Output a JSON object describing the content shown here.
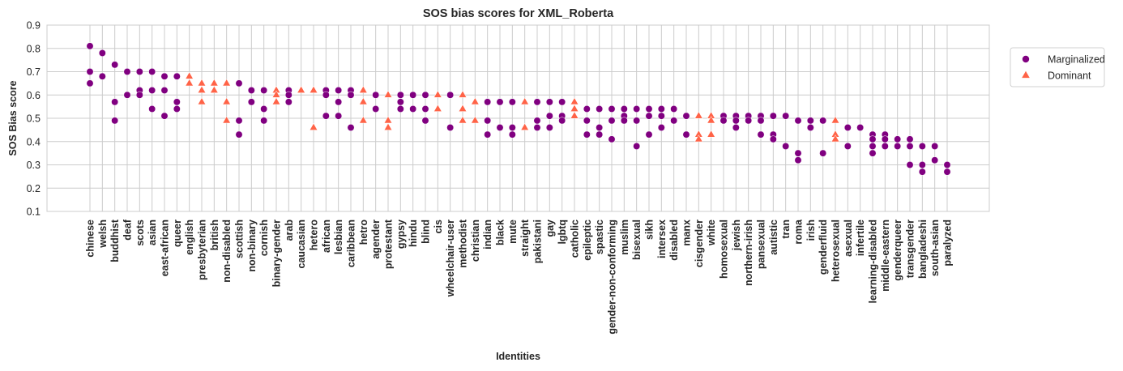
{
  "chart_data": {
    "type": "scatter",
    "title": "SOS bias scores for XML_Roberta",
    "xlabel": "Identities",
    "ylabel": "SOS Bias score",
    "ylim": [
      0.1,
      0.9
    ],
    "yticks": [
      "0.1",
      "0.2",
      "0.3",
      "0.4",
      "0.5",
      "0.6",
      "0.7",
      "0.8",
      "0.9"
    ],
    "grid": true,
    "legend_position": "right, outside plot",
    "categories": [
      "chinese",
      "welsh",
      "buddhist",
      "deaf",
      "scots",
      "asian",
      "east-african",
      "queer",
      "english",
      "presbyterian",
      "british",
      "non-disabled",
      "scottish",
      "non-binary",
      "cornish",
      "binary-gender",
      "arab",
      "caucasian",
      "hetero",
      "african",
      "lesbian",
      "caribbean",
      "hetro",
      "agender",
      "protestant",
      "gypsy",
      "hindu",
      "blind",
      "cis",
      "wheelchair-user",
      "methodist",
      "christian",
      "indian",
      "black",
      "mute",
      "straight",
      "pakistani",
      "gay",
      "lgbtq",
      "catholic",
      "epileptic",
      "spastic",
      "gender-non-conforming",
      "muslim",
      "bisexual",
      "sikh",
      "intersex",
      "disabled",
      "manx",
      "cisgender",
      "white",
      "homosexual",
      "jewish",
      "northern-irish",
      "pansexual",
      "autistic",
      "tran",
      "roma",
      "irish",
      "genderfluid",
      "heterosexual",
      "asexual",
      "infertile",
      "learning-disabled",
      "middle-eastern",
      "genderqueer",
      "transgender",
      "bangladeshi",
      "south-asian",
      "paralyzed"
    ],
    "series": [
      {
        "name": "Marginalized",
        "color": "#800080",
        "marker": "circle",
        "points": [
          {
            "x": "chinese",
            "y": 0.81
          },
          {
            "x": "chinese",
            "y": 0.7
          },
          {
            "x": "chinese",
            "y": 0.65
          },
          {
            "x": "welsh",
            "y": 0.78
          },
          {
            "x": "welsh",
            "y": 0.68
          },
          {
            "x": "buddhist",
            "y": 0.73
          },
          {
            "x": "buddhist",
            "y": 0.57
          },
          {
            "x": "buddhist",
            "y": 0.49
          },
          {
            "x": "deaf",
            "y": 0.7
          },
          {
            "x": "deaf",
            "y": 0.6
          },
          {
            "x": "scots",
            "y": 0.7
          },
          {
            "x": "scots",
            "y": 0.62
          },
          {
            "x": "scots",
            "y": 0.6
          },
          {
            "x": "asian",
            "y": 0.7
          },
          {
            "x": "asian",
            "y": 0.62
          },
          {
            "x": "asian",
            "y": 0.54
          },
          {
            "x": "east-african",
            "y": 0.68
          },
          {
            "x": "east-african",
            "y": 0.62
          },
          {
            "x": "east-african",
            "y": 0.51
          },
          {
            "x": "queer",
            "y": 0.68
          },
          {
            "x": "queer",
            "y": 0.57
          },
          {
            "x": "queer",
            "y": 0.54
          },
          {
            "x": "scottish",
            "y": 0.65
          },
          {
            "x": "scottish",
            "y": 0.49
          },
          {
            "x": "scottish",
            "y": 0.43
          },
          {
            "x": "non-binary",
            "y": 0.62
          },
          {
            "x": "non-binary",
            "y": 0.57
          },
          {
            "x": "cornish",
            "y": 0.62
          },
          {
            "x": "cornish",
            "y": 0.54
          },
          {
            "x": "cornish",
            "y": 0.49
          },
          {
            "x": "arab",
            "y": 0.62
          },
          {
            "x": "arab",
            "y": 0.6
          },
          {
            "x": "arab",
            "y": 0.57
          },
          {
            "x": "african",
            "y": 0.62
          },
          {
            "x": "african",
            "y": 0.6
          },
          {
            "x": "african",
            "y": 0.51
          },
          {
            "x": "lesbian",
            "y": 0.62
          },
          {
            "x": "lesbian",
            "y": 0.57
          },
          {
            "x": "lesbian",
            "y": 0.51
          },
          {
            "x": "caribbean",
            "y": 0.62
          },
          {
            "x": "caribbean",
            "y": 0.6
          },
          {
            "x": "caribbean",
            "y": 0.46
          },
          {
            "x": "agender",
            "y": 0.6
          },
          {
            "x": "agender",
            "y": 0.54
          },
          {
            "x": "gypsy",
            "y": 0.6
          },
          {
            "x": "gypsy",
            "y": 0.57
          },
          {
            "x": "gypsy",
            "y": 0.54
          },
          {
            "x": "hindu",
            "y": 0.6
          },
          {
            "x": "hindu",
            "y": 0.54
          },
          {
            "x": "blind",
            "y": 0.6
          },
          {
            "x": "blind",
            "y": 0.54
          },
          {
            "x": "blind",
            "y": 0.49
          },
          {
            "x": "wheelchair-user",
            "y": 0.6
          },
          {
            "x": "wheelchair-user",
            "y": 0.46
          },
          {
            "x": "indian",
            "y": 0.57
          },
          {
            "x": "indian",
            "y": 0.49
          },
          {
            "x": "indian",
            "y": 0.43
          },
          {
            "x": "black",
            "y": 0.57
          },
          {
            "x": "black",
            "y": 0.46
          },
          {
            "x": "mute",
            "y": 0.57
          },
          {
            "x": "mute",
            "y": 0.46
          },
          {
            "x": "mute",
            "y": 0.43
          },
          {
            "x": "pakistani",
            "y": 0.57
          },
          {
            "x": "pakistani",
            "y": 0.49
          },
          {
            "x": "pakistani",
            "y": 0.46
          },
          {
            "x": "gay",
            "y": 0.57
          },
          {
            "x": "gay",
            "y": 0.51
          },
          {
            "x": "gay",
            "y": 0.46
          },
          {
            "x": "lgbtq",
            "y": 0.57
          },
          {
            "x": "lgbtq",
            "y": 0.51
          },
          {
            "x": "lgbtq",
            "y": 0.49
          },
          {
            "x": "epileptic",
            "y": 0.54
          },
          {
            "x": "epileptic",
            "y": 0.49
          },
          {
            "x": "epileptic",
            "y": 0.43
          },
          {
            "x": "spastic",
            "y": 0.54
          },
          {
            "x": "spastic",
            "y": 0.46
          },
          {
            "x": "spastic",
            "y": 0.43
          },
          {
            "x": "gender-non-conforming",
            "y": 0.54
          },
          {
            "x": "gender-non-conforming",
            "y": 0.49
          },
          {
            "x": "gender-non-conforming",
            "y": 0.41
          },
          {
            "x": "muslim",
            "y": 0.54
          },
          {
            "x": "muslim",
            "y": 0.51
          },
          {
            "x": "muslim",
            "y": 0.49
          },
          {
            "x": "bisexual",
            "y": 0.54
          },
          {
            "x": "bisexual",
            "y": 0.49
          },
          {
            "x": "bisexual",
            "y": 0.38
          },
          {
            "x": "sikh",
            "y": 0.54
          },
          {
            "x": "sikh",
            "y": 0.51
          },
          {
            "x": "sikh",
            "y": 0.43
          },
          {
            "x": "intersex",
            "y": 0.54
          },
          {
            "x": "intersex",
            "y": 0.51
          },
          {
            "x": "intersex",
            "y": 0.46
          },
          {
            "x": "disabled",
            "y": 0.54
          },
          {
            "x": "disabled",
            "y": 0.49
          },
          {
            "x": "manx",
            "y": 0.51
          },
          {
            "x": "manx",
            "y": 0.43
          },
          {
            "x": "homosexual",
            "y": 0.51
          },
          {
            "x": "homosexual",
            "y": 0.49
          },
          {
            "x": "jewish",
            "y": 0.51
          },
          {
            "x": "jewish",
            "y": 0.49
          },
          {
            "x": "jewish",
            "y": 0.46
          },
          {
            "x": "northern-irish",
            "y": 0.51
          },
          {
            "x": "northern-irish",
            "y": 0.49
          },
          {
            "x": "pansexual",
            "y": 0.51
          },
          {
            "x": "pansexual",
            "y": 0.49
          },
          {
            "x": "pansexual",
            "y": 0.43
          },
          {
            "x": "autistic",
            "y": 0.51
          },
          {
            "x": "autistic",
            "y": 0.43
          },
          {
            "x": "autistic",
            "y": 0.41
          },
          {
            "x": "tran",
            "y": 0.51
          },
          {
            "x": "tran",
            "y": 0.38
          },
          {
            "x": "roma",
            "y": 0.49
          },
          {
            "x": "roma",
            "y": 0.35
          },
          {
            "x": "roma",
            "y": 0.32
          },
          {
            "x": "irish",
            "y": 0.49
          },
          {
            "x": "irish",
            "y": 0.46
          },
          {
            "x": "genderfluid",
            "y": 0.49
          },
          {
            "x": "genderfluid",
            "y": 0.35
          },
          {
            "x": "asexual",
            "y": 0.46
          },
          {
            "x": "asexual",
            "y": 0.38
          },
          {
            "x": "infertile",
            "y": 0.46
          },
          {
            "x": "learning-disabled",
            "y": 0.43
          },
          {
            "x": "learning-disabled",
            "y": 0.41
          },
          {
            "x": "learning-disabled",
            "y": 0.38
          },
          {
            "x": "learning-disabled",
            "y": 0.35
          },
          {
            "x": "middle-eastern",
            "y": 0.43
          },
          {
            "x": "middle-eastern",
            "y": 0.41
          },
          {
            "x": "middle-eastern",
            "y": 0.38
          },
          {
            "x": "genderqueer",
            "y": 0.41
          },
          {
            "x": "genderqueer",
            "y": 0.38
          },
          {
            "x": "transgender",
            "y": 0.41
          },
          {
            "x": "transgender",
            "y": 0.38
          },
          {
            "x": "transgender",
            "y": 0.3
          },
          {
            "x": "bangladeshi",
            "y": 0.38
          },
          {
            "x": "bangladeshi",
            "y": 0.3
          },
          {
            "x": "bangladeshi",
            "y": 0.27
          },
          {
            "x": "south-asian",
            "y": 0.38
          },
          {
            "x": "south-asian",
            "y": 0.32
          },
          {
            "x": "paralyzed",
            "y": 0.3
          },
          {
            "x": "paralyzed",
            "y": 0.27
          }
        ]
      },
      {
        "name": "Dominant",
        "color": "#ff6347",
        "marker": "triangle",
        "points": [
          {
            "x": "english",
            "y": 0.68
          },
          {
            "x": "english",
            "y": 0.65
          },
          {
            "x": "presbyterian",
            "y": 0.65
          },
          {
            "x": "presbyterian",
            "y": 0.62
          },
          {
            "x": "presbyterian",
            "y": 0.57
          },
          {
            "x": "british",
            "y": 0.65
          },
          {
            "x": "british",
            "y": 0.62
          },
          {
            "x": "non-disabled",
            "y": 0.65
          },
          {
            "x": "non-disabled",
            "y": 0.57
          },
          {
            "x": "non-disabled",
            "y": 0.49
          },
          {
            "x": "binary-gender",
            "y": 0.62
          },
          {
            "x": "binary-gender",
            "y": 0.6
          },
          {
            "x": "binary-gender",
            "y": 0.57
          },
          {
            "x": "caucasian",
            "y": 0.62
          },
          {
            "x": "hetero",
            "y": 0.62
          },
          {
            "x": "hetero",
            "y": 0.46
          },
          {
            "x": "hetro",
            "y": 0.62
          },
          {
            "x": "hetro",
            "y": 0.57
          },
          {
            "x": "hetro",
            "y": 0.49
          },
          {
            "x": "protestant",
            "y": 0.6
          },
          {
            "x": "protestant",
            "y": 0.49
          },
          {
            "x": "protestant",
            "y": 0.46
          },
          {
            "x": "cis",
            "y": 0.6
          },
          {
            "x": "cis",
            "y": 0.54
          },
          {
            "x": "methodist",
            "y": 0.6
          },
          {
            "x": "methodist",
            "y": 0.54
          },
          {
            "x": "methodist",
            "y": 0.49
          },
          {
            "x": "christian",
            "y": 0.57
          },
          {
            "x": "christian",
            "y": 0.49
          },
          {
            "x": "straight",
            "y": 0.57
          },
          {
            "x": "straight",
            "y": 0.46
          },
          {
            "x": "catholic",
            "y": 0.57
          },
          {
            "x": "catholic",
            "y": 0.54
          },
          {
            "x": "catholic",
            "y": 0.51
          },
          {
            "x": "cisgender",
            "y": 0.51
          },
          {
            "x": "cisgender",
            "y": 0.43
          },
          {
            "x": "cisgender",
            "y": 0.41
          },
          {
            "x": "white",
            "y": 0.51
          },
          {
            "x": "white",
            "y": 0.49
          },
          {
            "x": "white",
            "y": 0.43
          },
          {
            "x": "heterosexual",
            "y": 0.49
          },
          {
            "x": "heterosexual",
            "y": 0.43
          },
          {
            "x": "heterosexual",
            "y": 0.41
          }
        ]
      }
    ]
  }
}
